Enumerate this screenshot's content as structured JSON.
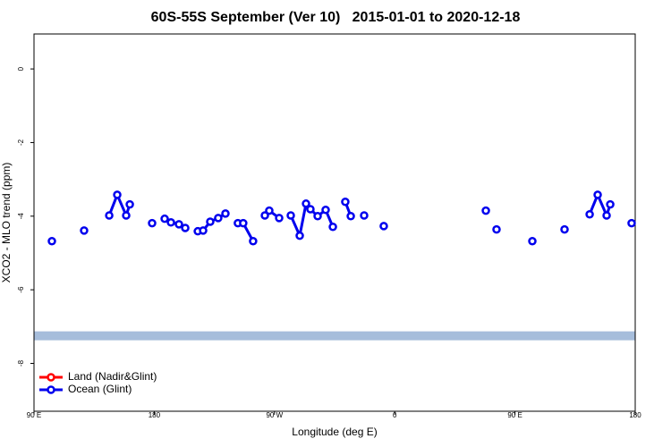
{
  "chart_data": {
    "type": "line",
    "title": "60S-55S September (Ver 10)   2015-01-01 to 2020-12-18",
    "x_label": "Longitude (deg E)",
    "y_label": "XCO2 - MLO trend (ppm)",
    "xlim": [
      90,
      540
    ],
    "xticks": [
      {
        "value": 90,
        "label": "90 E"
      },
      180,
      {
        "value": 270,
        "label": "90 W"
      },
      {
        "value": 360,
        "label": "0"
      },
      {
        "value": 450,
        "label": "90 E"
      },
      {
        "value": 540,
        "label": "180"
      }
    ],
    "ylim": [
      -9.3,
      0.95
    ],
    "yticks": [
      0,
      -2,
      -4,
      -6,
      -8
    ],
    "reference_band": {
      "y": -7.25,
      "color": "#a6bddb"
    },
    "legend": "bottom-left",
    "series": [
      {
        "name": "Land (Nadir&Glint)",
        "color": "#ff0000",
        "x": [],
        "values": []
      },
      {
        "name": "Ocean (Glint)",
        "color": "#0000ee",
        "x": [
          103.4,
          null,
          127.5,
          null,
          146.3,
          152.3,
          159.0,
          161.7,
          null,
          178.4,
          null,
          187.8,
          192.5,
          198.5,
          203.2,
          null,
          212.6,
          216.6,
          221.9,
          227.9,
          233.3,
          null,
          242.6,
          246.6,
          254.0,
          null,
          262.8,
          266.1,
          273.5,
          null,
          282.2,
          288.9,
          293.6,
          296.9,
          302.3,
          308.3,
          313.7,
          null,
          323.0,
          327.1,
          null,
          337.1,
          null,
          351.8,
          null,
          428.2,
          null,
          436.2,
          null,
          463.0,
          null,
          487.1,
          null,
          505.9,
          511.9,
          518.6,
          521.3,
          null,
          537.3
        ],
        "values": [
          -4.68,
          null,
          -4.39,
          null,
          -3.98,
          -3.42,
          -3.98,
          -3.68,
          null,
          -4.19,
          null,
          -4.07,
          -4.17,
          -4.22,
          -4.32,
          null,
          -4.41,
          -4.39,
          -4.15,
          -4.05,
          -3.93,
          null,
          -4.19,
          -4.19,
          -4.68,
          null,
          -3.98,
          -3.85,
          -4.05,
          null,
          -3.98,
          -4.53,
          -3.66,
          -3.81,
          -4.0,
          -3.83,
          -4.29,
          null,
          -3.61,
          -4.0,
          null,
          -3.98,
          null,
          -4.27,
          null,
          -3.85,
          null,
          -4.36,
          null,
          -4.68,
          null,
          -4.36,
          null,
          -3.95,
          -3.42,
          -3.98,
          -3.68,
          null,
          -4.19
        ]
      }
    ]
  }
}
